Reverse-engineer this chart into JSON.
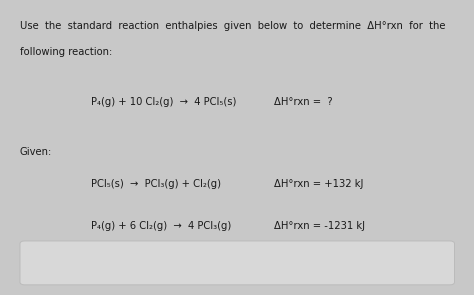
{
  "bg_color": "#c8c8c8",
  "card_color": "#f0f0f0",
  "border_color": "#aaaaaa",
  "text_color": "#1a1a1a",
  "header_line1": "Use  the  standard  reaction  enthalpies  given  below  to  determine  ΔH°rxn  for  the",
  "header_line2": "following reaction:",
  "main_lhs": "P₄(g) + 10 Cl₂(g)  →  4 PCl₅(s)",
  "main_rhs": "ΔH°rxn =  ?",
  "given_label": "Given:",
  "rxn1_lhs": "PCl₅(s)  →  PCl₃(g) + Cl₂(g)",
  "rxn1_rhs": "ΔH°rxn = +132 kJ",
  "rxn2_lhs": "P₄(g) + 6 Cl₂(g)  →  4 PCl₃(g)",
  "rxn2_rhs": "ΔH°rxn = -1231 kJ",
  "bottom_box_color": "#d8d8d8",
  "font_size": 7.2,
  "font_size_small": 7.0
}
